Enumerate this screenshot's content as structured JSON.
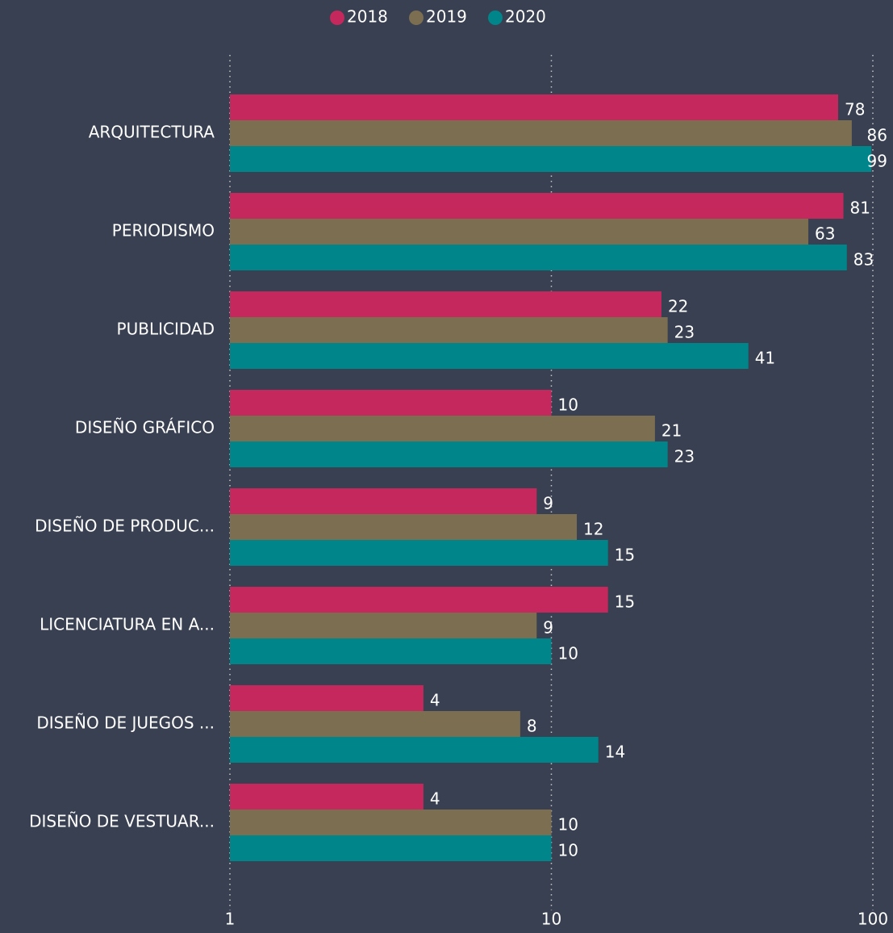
{
  "chart_data": {
    "type": "barh",
    "categories": [
      "ARQUITECTURA",
      "PERIODISMO",
      "PUBLICIDAD",
      "DISEÑO GRÁFICO",
      "DISEÑO DE PRODUC...",
      "LICENCIATURA EN A...",
      "DISEÑO DE JUEGOS ...",
      "DISEÑO DE VESTUAR..."
    ],
    "series": [
      {
        "name": "2018",
        "color": "#c4285c",
        "values": [
          78,
          81,
          22,
          10,
          9,
          15,
          4,
          4
        ]
      },
      {
        "name": "2019",
        "color": "#7b6e51",
        "values": [
          86,
          63,
          23,
          21,
          12,
          9,
          8,
          10
        ]
      },
      {
        "name": "2020",
        "color": "#00858a",
        "values": [
          99,
          83,
          41,
          23,
          15,
          10,
          14,
          10
        ]
      }
    ],
    "xlim": [
      1,
      100
    ],
    "xticks": [
      1,
      10,
      100
    ],
    "xscale": "log",
    "grid": true,
    "legend": "top"
  }
}
